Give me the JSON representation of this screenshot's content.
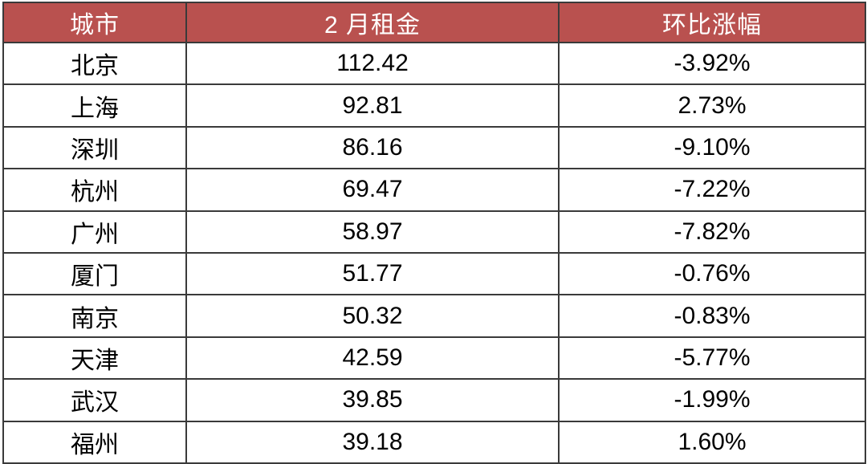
{
  "colors": {
    "header_background": "#b9514f",
    "header_text": "#ffffff",
    "body_text": "#000000",
    "grid_border": "#3a3a3a",
    "row_background": "#ffffff"
  },
  "table": {
    "columns": [
      {
        "label": "城市"
      },
      {
        "label": "2 月租金"
      },
      {
        "label": "环比涨幅"
      }
    ],
    "rows": [
      {
        "city": "北京",
        "rent": "112.42",
        "mom": "-3.92%"
      },
      {
        "city": "上海",
        "rent": "92.81",
        "mom": "2.73%"
      },
      {
        "city": "深圳",
        "rent": "86.16",
        "mom": "-9.10%"
      },
      {
        "city": "杭州",
        "rent": "69.47",
        "mom": "-7.22%"
      },
      {
        "city": "广州",
        "rent": "58.97",
        "mom": "-7.82%"
      },
      {
        "city": "厦门",
        "rent": "51.77",
        "mom": "-0.76%"
      },
      {
        "city": "南京",
        "rent": "50.32",
        "mom": "-0.83%"
      },
      {
        "city": "天津",
        "rent": "42.59",
        "mom": "-5.77%"
      },
      {
        "city": "武汉",
        "rent": "39.85",
        "mom": "-1.99%"
      },
      {
        "city": "福州",
        "rent": "39.18",
        "mom": "1.60%"
      }
    ]
  },
  "chart_data": {
    "type": "table",
    "title": "",
    "columns": [
      "城市",
      "2 月租金",
      "环比涨幅"
    ],
    "rows": [
      [
        "北京",
        112.42,
        "-3.92%"
      ],
      [
        "上海",
        92.81,
        "2.73%"
      ],
      [
        "深圳",
        86.16,
        "-9.10%"
      ],
      [
        "杭州",
        69.47,
        "-7.22%"
      ],
      [
        "广州",
        58.97,
        "-7.82%"
      ],
      [
        "厦门",
        51.77,
        "-0.76%"
      ],
      [
        "南京",
        50.32,
        "-0.83%"
      ],
      [
        "天津",
        42.59,
        "-5.77%"
      ],
      [
        "武汉",
        39.85,
        "-1.99%"
      ],
      [
        "福州",
        39.18,
        "1.60%"
      ]
    ]
  }
}
